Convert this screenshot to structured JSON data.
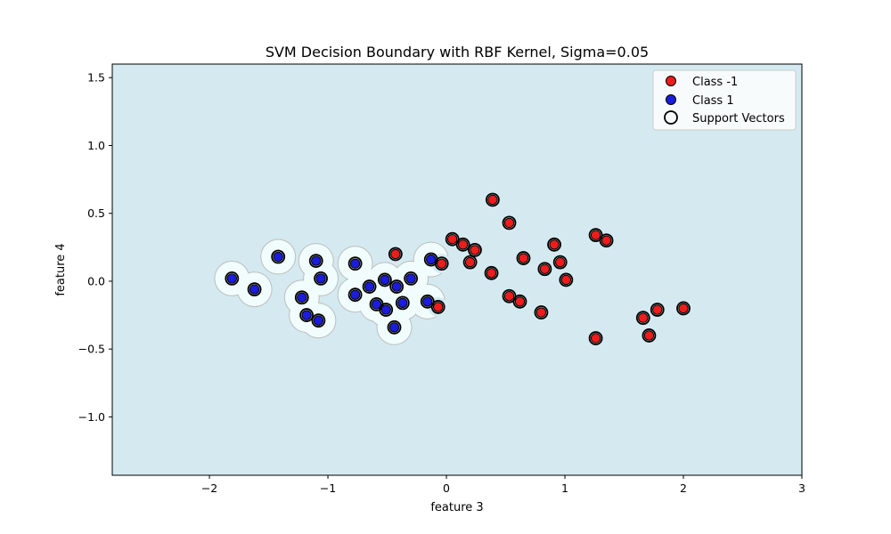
{
  "chart_data": {
    "type": "scatter",
    "title": "SVM Decision Boundary with RBF Kernel, Sigma=0.05",
    "xlabel": "feature 3",
    "ylabel": "feature 4",
    "xlim": [
      -2.82,
      3.0
    ],
    "ylim": [
      -1.43,
      1.6
    ],
    "xticks": [
      -2,
      -1,
      0,
      1,
      2,
      3
    ],
    "xtick_labels": [
      "−2",
      "−1",
      "0",
      "1",
      "2",
      "3"
    ],
    "yticks": [
      -1.0,
      -0.5,
      0.0,
      0.5,
      1.0,
      1.5
    ],
    "ytick_labels": [
      "−1.0",
      "−0.5",
      "0.0",
      "0.5",
      "1.0",
      "1.5"
    ],
    "grid": false,
    "legend_position": "top-right",
    "colors": {
      "background_region": "#d4eaf0",
      "class1_region": "#f1fcfd",
      "region_edge": "#bdbdbd",
      "class_neg": "#ee1c1c",
      "class_pos": "#1c1cdd",
      "support_vector_ring": "#000000"
    },
    "series": [
      {
        "name": "Class -1",
        "color": "#ee1c1c",
        "points": [
          [
            0.05,
            0.31
          ],
          [
            0.14,
            0.27
          ],
          [
            0.24,
            0.23
          ],
          [
            0.2,
            0.14
          ],
          [
            -0.04,
            0.13
          ],
          [
            -0.07,
            -0.19
          ],
          [
            0.39,
            0.6
          ],
          [
            0.53,
            0.43
          ],
          [
            0.38,
            0.06
          ],
          [
            0.53,
            -0.11
          ],
          [
            0.62,
            -0.15
          ],
          [
            0.65,
            0.17
          ],
          [
            0.8,
            -0.23
          ],
          [
            0.83,
            0.09
          ],
          [
            0.91,
            0.27
          ],
          [
            0.96,
            0.14
          ],
          [
            1.01,
            0.01
          ],
          [
            1.26,
            0.34
          ],
          [
            1.35,
            0.3
          ],
          [
            1.26,
            -0.42
          ],
          [
            1.66,
            -0.27
          ],
          [
            1.71,
            -0.4
          ],
          [
            1.78,
            -0.21
          ],
          [
            2.0,
            -0.2
          ],
          [
            -0.43,
            0.2
          ]
        ]
      },
      {
        "name": "Class 1",
        "color": "#1c1cdd",
        "points": [
          [
            -1.81,
            0.02
          ],
          [
            -1.62,
            -0.06
          ],
          [
            -1.42,
            0.18
          ],
          [
            -1.22,
            -0.12
          ],
          [
            -1.18,
            -0.25
          ],
          [
            -1.1,
            0.15
          ],
          [
            -1.06,
            0.02
          ],
          [
            -1.08,
            -0.29
          ],
          [
            -0.77,
            0.13
          ],
          [
            -0.77,
            -0.1
          ],
          [
            -0.65,
            -0.04
          ],
          [
            -0.59,
            -0.17
          ],
          [
            -0.52,
            0.01
          ],
          [
            -0.51,
            -0.21
          ],
          [
            -0.44,
            -0.34
          ],
          [
            -0.42,
            -0.04
          ],
          [
            -0.37,
            -0.16
          ],
          [
            -0.3,
            0.02
          ],
          [
            -0.16,
            -0.15
          ],
          [
            -0.13,
            0.16
          ]
        ]
      }
    ],
    "support_vectors_label": "Support Vectors",
    "support_vectors": "all points"
  }
}
